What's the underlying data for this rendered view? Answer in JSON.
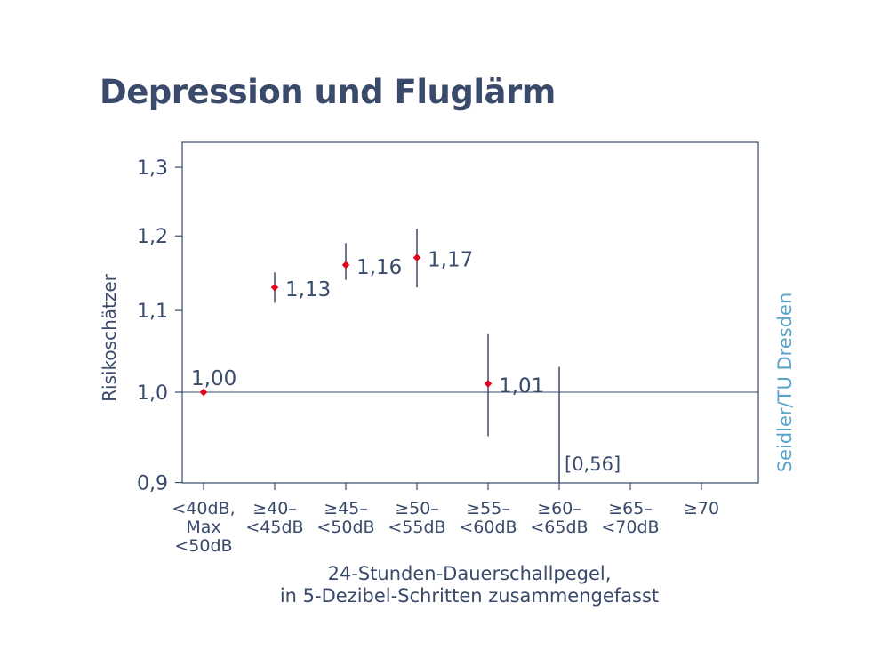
{
  "title": "Depression und Fluglärm",
  "credit": "Seidler/TU Dresden",
  "colors": {
    "text": "#3a4a6b",
    "axis": "#3a4a6b",
    "marker": "#e2001a",
    "credit": "#5aa3c9"
  },
  "chart_data": {
    "type": "scatter",
    "title": "Depression und Fluglärm",
    "ylabel": "Risikoschätzer",
    "xlabel": [
      "24-Stunden-Dauerschallpegel,",
      "in 5-Dezibel-Schritten zusammengefasst"
    ],
    "y_scale": "log",
    "ylim": [
      0.9,
      1.35
    ],
    "yticks": [
      0.9,
      1.0,
      1.1,
      1.2,
      1.3
    ],
    "ytick_labels": [
      "0,9",
      "1,0",
      "1,1",
      "1,2",
      "1,3"
    ],
    "reference_line": 1.0,
    "categories": [
      [
        "<40dB,",
        "Max",
        "<50dB"
      ],
      [
        "≥40–",
        "<45dB"
      ],
      [
        "≥45–",
        "<50dB"
      ],
      [
        "≥50–",
        "<55dB"
      ],
      [
        "≥55–",
        "<60dB"
      ],
      [
        "≥60–",
        "<65dB"
      ],
      [
        "≥65–",
        "<70dB"
      ],
      [
        "≥70"
      ]
    ],
    "points": [
      {
        "category_index": 0,
        "value": 1.0,
        "label": "1,00"
      },
      {
        "category_index": 1,
        "value": 1.13,
        "ci": [
          1.11,
          1.15
        ],
        "label": "1,13"
      },
      {
        "category_index": 2,
        "value": 1.16,
        "ci": [
          1.14,
          1.19
        ],
        "label": "1,16"
      },
      {
        "category_index": 3,
        "value": 1.17,
        "ci": [
          1.13,
          1.21
        ],
        "label": "1,17"
      },
      {
        "category_index": 4,
        "value": 1.01,
        "ci": [
          0.95,
          1.07
        ],
        "label": "1,01"
      },
      {
        "category_index": 5,
        "ci": [
          0.89,
          1.03
        ],
        "label": "[0,56]"
      }
    ],
    "grid": false,
    "legend": "none"
  }
}
